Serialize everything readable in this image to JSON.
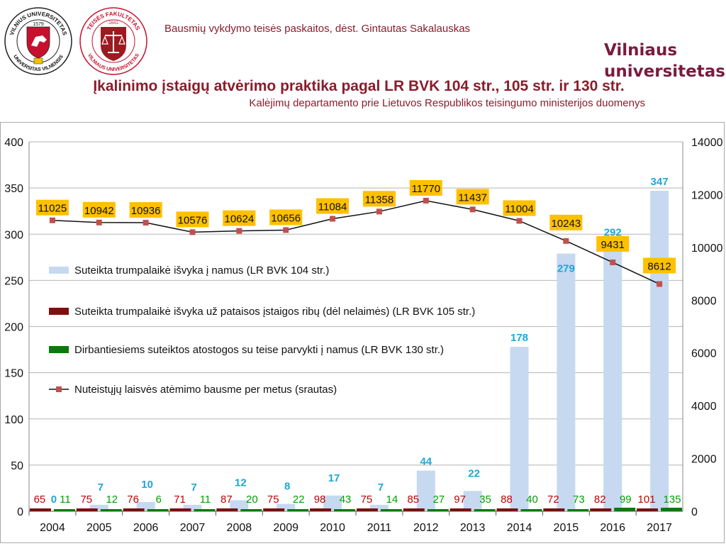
{
  "header": {
    "course_text": "Bausmių vykdymo teisės paskaitos, dėst. Gintautas Sakalauskas",
    "brand_line1": "Vilniaus",
    "brand_line2": "universitetas",
    "logo_univ_top": "VILNIUS UNIVERSITETAS",
    "logo_univ_bottom": "UNIVERSITAS VILNENSIS",
    "logo_univ_year": "1579",
    "logo_fac_top": "TEISĖS FAKULTETAS",
    "logo_fac_bottom": "VILNIAUS UNIVERSITETAS",
    "logo_fac_year": "-1641-"
  },
  "slide": {
    "title": "Įkalinimo įstaigų atvėrimo praktika pagal LR BVK 104 str., 105 str. ir 130 str.",
    "subtitle": "Kalėjimų departamento prie Lietuvos Respublikos teisingumo ministerijos duomenys"
  },
  "colors": {
    "brand": "#8a1c2c",
    "series_104": "#c6d9f1",
    "series_105": "#c00000",
    "series_130": "#00a000",
    "series_line": "#c0504d",
    "label_104": "#1fa5d6",
    "label_line_bg": "#ffc000"
  },
  "chart_data": {
    "type": "bar",
    "categories": [
      "2004",
      "2005",
      "2006",
      "2007",
      "2008",
      "2009",
      "2010",
      "2011",
      "2012",
      "2013",
      "2014",
      "2015",
      "2016",
      "2017"
    ],
    "series": [
      {
        "name": "Suteikta trumpalaikė išvyka į namus (LR BVK 104 str.)",
        "axis": "left",
        "type": "bar",
        "values": [
          0,
          7,
          10,
          7,
          12,
          8,
          17,
          7,
          44,
          22,
          178,
          279,
          292,
          347
        ]
      },
      {
        "name": "Suteikta trumpalaikė išvyka už pataisos įstaigos ribų (dėl nelaimės) (LR BVK 105 str.)",
        "axis": "left",
        "type": "bar",
        "values": [
          65,
          75,
          76,
          71,
          87,
          75,
          98,
          75,
          85,
          97,
          88,
          72,
          82,
          101
        ]
      },
      {
        "name": "Dirbantiesiems suteiktos atostogos su teise parvykti į namus (LR BVK 130 str.)",
        "axis": "left",
        "type": "bar",
        "values": [
          11,
          12,
          6,
          11,
          20,
          22,
          43,
          14,
          27,
          35,
          40,
          73,
          99,
          135
        ]
      },
      {
        "name": "Nuteistųjų laisvės atėmimo bausme per metus (srautas)",
        "axis": "right",
        "type": "line",
        "values": [
          11025,
          10942,
          10936,
          10576,
          10624,
          10656,
          11084,
          11358,
          11770,
          11437,
          11004,
          10243,
          9431,
          8612
        ]
      }
    ],
    "ylim": [
      0,
      400
    ],
    "y_ticks": [
      "0",
      "50",
      "100",
      "150",
      "200",
      "250",
      "300",
      "350",
      "400"
    ],
    "y2lim": [
      0,
      14000
    ],
    "y2_ticks": [
      "0",
      "2000",
      "4000",
      "6000",
      "8000",
      "10000",
      "12000",
      "14000"
    ],
    "grid": true,
    "legend": "inside-left"
  }
}
